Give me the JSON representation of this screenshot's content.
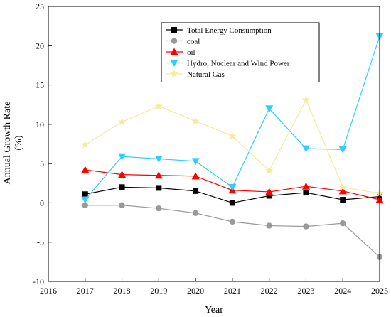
{
  "chart_data": {
    "type": "line",
    "title": "",
    "xlabel": "Year",
    "ylabel_line1": "Annual Growth Rate",
    "ylabel_line2": "(%)",
    "xlim": [
      2016,
      2025
    ],
    "ylim": [
      -10,
      25
    ],
    "x_ticks": [
      2016,
      2017,
      2018,
      2019,
      2020,
      2021,
      2022,
      2023,
      2024,
      2025
    ],
    "y_ticks": [
      -10,
      -5,
      0,
      5,
      10,
      15,
      20,
      25
    ],
    "grid": false,
    "legend_position": "top-right",
    "x": [
      2017,
      2018,
      2019,
      2020,
      2021,
      2022,
      2023,
      2024,
      2025
    ],
    "series": [
      {
        "name": "Total Energy Consumption",
        "color": "#000000",
        "marker": "square",
        "values": [
          1.1,
          2.0,
          1.9,
          1.5,
          0.0,
          0.9,
          1.3,
          0.4,
          0.8
        ]
      },
      {
        "name": "coal",
        "color": "#999999",
        "marker": "circle",
        "values": [
          -0.3,
          -0.3,
          -0.7,
          -1.3,
          -2.4,
          -2.9,
          -3.0,
          -2.6,
          -6.9
        ]
      },
      {
        "name": "oil",
        "color": "#ff0000",
        "marker": "triangle-up",
        "values": [
          4.2,
          3.6,
          3.5,
          3.4,
          1.6,
          1.4,
          2.1,
          1.5,
          0.4
        ]
      },
      {
        "name": "Hydro, Nuclear and Wind Power",
        "color": "#33ccff",
        "marker": "triangle-down",
        "values": [
          0.4,
          5.9,
          5.6,
          5.3,
          2.0,
          12.0,
          6.9,
          6.8,
          21.2
        ]
      },
      {
        "name": "Natural Gas",
        "color": "#f2ec9c",
        "marker": "star",
        "values": [
          7.4,
          10.3,
          12.3,
          10.4,
          8.5,
          4.1,
          13.1,
          2.0,
          1.2
        ]
      }
    ]
  }
}
